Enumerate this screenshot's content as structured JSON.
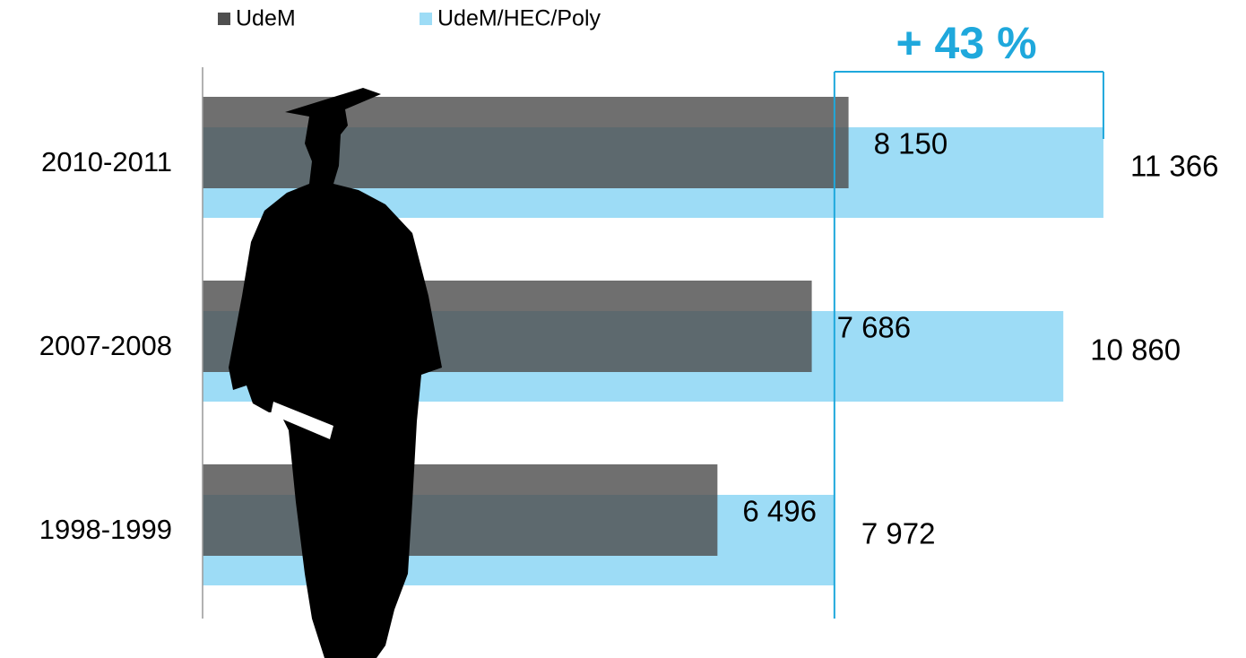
{
  "chart_data": {
    "type": "bar",
    "orientation": "horizontal",
    "annotation": "+ 43 %",
    "categories": [
      "2010-2011",
      "2007-2008",
      "1998-1999"
    ],
    "series": [
      {
        "name": "UdeM",
        "color": "#4f4f4f",
        "values": [
          8150,
          7686,
          6496
        ],
        "value_labels": [
          "8 150",
          "7 686",
          "6 496"
        ]
      },
      {
        "name": "UdeM/HEC/Poly",
        "color": "#9ddcf6",
        "values": [
          11366,
          10860,
          7972
        ],
        "value_labels": [
          "11 366",
          "10 860",
          "7 972"
        ]
      }
    ],
    "xlim": [
      0,
      12000
    ],
    "annotation_color": "#1fa8dc"
  }
}
